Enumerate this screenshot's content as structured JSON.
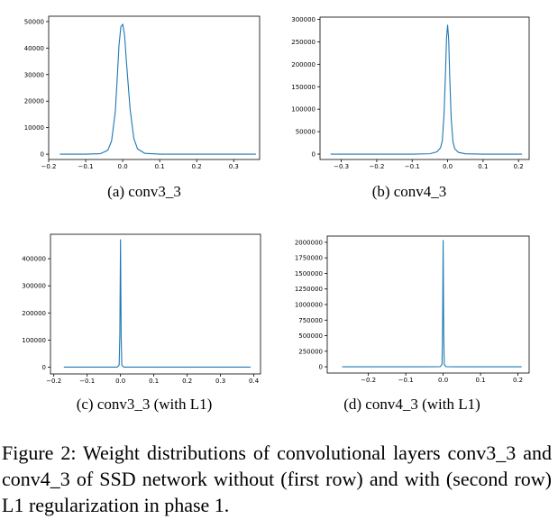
{
  "chart_data": [
    {
      "id": "a",
      "type": "line",
      "caption": "(a) conv3_3",
      "xlim": [
        -0.2,
        0.37
      ],
      "ylim": [
        -2000,
        52000
      ],
      "xticks": [
        -0.2,
        -0.1,
        0.0,
        0.1,
        0.2,
        0.3
      ],
      "xtick_labels": [
        "−0.2",
        "−0.1",
        "0.0",
        "0.1",
        "0.2",
        "0.3"
      ],
      "yticks": [
        0,
        10000,
        20000,
        30000,
        40000,
        50000
      ],
      "ytick_labels": [
        "0",
        "10000",
        "20000",
        "30000",
        "40000",
        "50000"
      ],
      "grid": false,
      "series": [
        {
          "color": "#1f77b4",
          "x": [
            -0.17,
            -0.1,
            -0.06,
            -0.04,
            -0.03,
            -0.02,
            -0.015,
            -0.01,
            -0.005,
            0.0,
            0.005,
            0.01,
            0.02,
            0.03,
            0.04,
            0.06,
            0.1,
            0.2,
            0.36
          ],
          "y": [
            0,
            0,
            200,
            1500,
            5000,
            16000,
            28000,
            41000,
            48000,
            49000,
            45000,
            35000,
            17000,
            6000,
            2000,
            300,
            0,
            0,
            0
          ]
        }
      ]
    },
    {
      "id": "b",
      "type": "line",
      "caption": "(b) conv4_3",
      "xlim": [
        -0.36,
        0.23
      ],
      "ylim": [
        -12000,
        305000
      ],
      "xticks": [
        -0.3,
        -0.2,
        -0.1,
        0.0,
        0.1,
        0.2
      ],
      "xtick_labels": [
        "−0.3",
        "−0.2",
        "−0.1",
        "0.0",
        "0.1",
        "0.2"
      ],
      "yticks": [
        0,
        50000,
        100000,
        150000,
        200000,
        250000,
        300000
      ],
      "ytick_labels": [
        "0",
        "50000",
        "100000",
        "150000",
        "200000",
        "250000",
        "300000"
      ],
      "grid": false,
      "series": [
        {
          "color": "#1f77b4",
          "x": [
            -0.33,
            -0.1,
            -0.05,
            -0.03,
            -0.02,
            -0.015,
            -0.01,
            -0.006,
            -0.003,
            0.0,
            0.003,
            0.006,
            0.01,
            0.015,
            0.02,
            0.03,
            0.05,
            0.1,
            0.21
          ],
          "y": [
            0,
            0,
            800,
            5000,
            14000,
            30000,
            90000,
            180000,
            260000,
            287000,
            255000,
            170000,
            80000,
            28000,
            12000,
            4000,
            600,
            0,
            0
          ]
        }
      ]
    },
    {
      "id": "c",
      "type": "line",
      "caption": "(c) conv3_3 (with L1)",
      "xlim": [
        -0.21,
        0.42
      ],
      "ylim": [
        -25000,
        490000
      ],
      "xticks": [
        -0.2,
        -0.1,
        0.0,
        0.1,
        0.2,
        0.3,
        0.4
      ],
      "xtick_labels": [
        "−0.2",
        "−0.1",
        "0.0",
        "0.1",
        "0.2",
        "0.3",
        "0.4"
      ],
      "yticks": [
        0,
        100000,
        200000,
        300000,
        400000
      ],
      "ytick_labels": [
        "0",
        "100000",
        "200000",
        "300000",
        "400000"
      ],
      "grid": false,
      "series": [
        {
          "color": "#1f77b4",
          "x": [
            -0.17,
            -0.05,
            -0.01,
            -0.004,
            -0.002,
            0.0,
            0.002,
            0.004,
            0.01,
            0.05,
            0.39
          ],
          "y": [
            0,
            0,
            300,
            8000,
            120000,
            470000,
            110000,
            7000,
            300,
            0,
            0
          ]
        }
      ]
    },
    {
      "id": "d",
      "type": "line",
      "caption": "(d) conv4_3 (with L1)",
      "xlim": [
        -0.31,
        0.23
      ],
      "ylim": [
        -100000,
        2100000
      ],
      "xticks": [
        -0.2,
        -0.1,
        0.0,
        0.1,
        0.2
      ],
      "xtick_labels": [
        "−0.2",
        "−0.1",
        "0.0",
        "0.1",
        "0.2"
      ],
      "yticks": [
        0,
        250000,
        500000,
        750000,
        1000000,
        1250000,
        1500000,
        1750000,
        2000000
      ],
      "ytick_labels": [
        "0",
        "250000",
        "500000",
        "750000",
        "1000000",
        "1250000",
        "1500000",
        "1750000",
        "2000000"
      ],
      "grid": false,
      "series": [
        {
          "color": "#1f77b4",
          "x": [
            -0.27,
            -0.05,
            -0.008,
            -0.003,
            -0.0015,
            0.0,
            0.0015,
            0.003,
            0.008,
            0.05,
            0.21
          ],
          "y": [
            0,
            0,
            2000,
            40000,
            600000,
            2030000,
            550000,
            35000,
            2000,
            0,
            0
          ]
        }
      ]
    }
  ],
  "figure_caption": "Figure 2:  Weight distributions of convolutional layers conv3_3 and conv4_3 of SSD network without (first row) and with (second row) L1 regularization in phase 1."
}
